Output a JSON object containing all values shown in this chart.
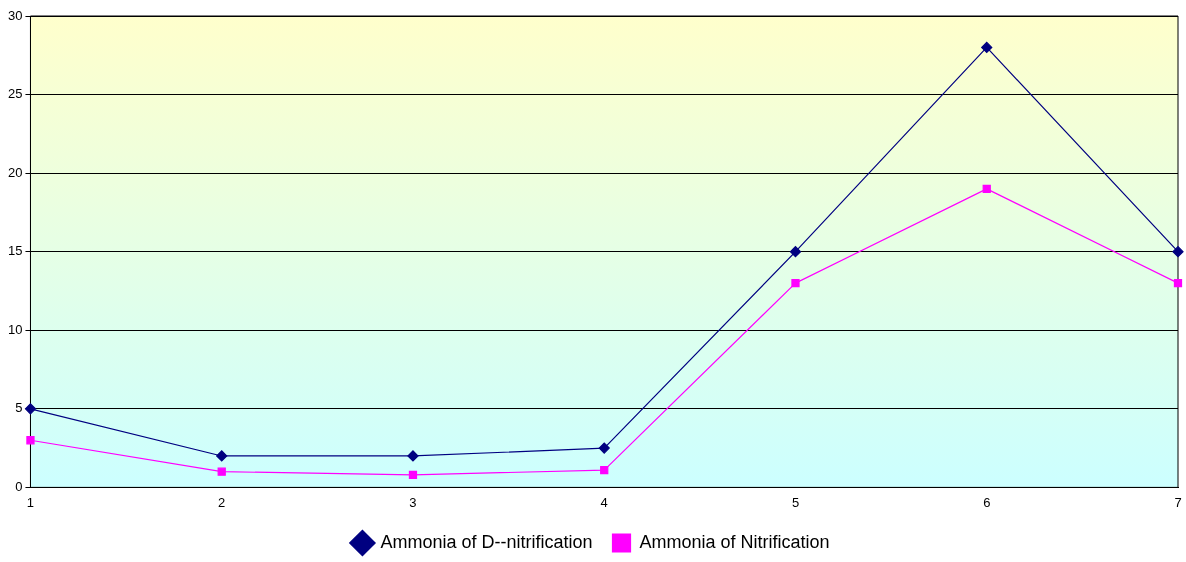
{
  "chart_data": {
    "type": "line",
    "categories": [
      "1",
      "2",
      "3",
      "4",
      "5",
      "6",
      "7"
    ],
    "series": [
      {
        "name": "Ammonia of D--nitrification",
        "color": "#000080",
        "marker": "diamond",
        "values": [
          5,
          2,
          2,
          2.5,
          15,
          28,
          15
        ]
      },
      {
        "name": "Ammonia of Nitrification",
        "color": "#ff00ff",
        "marker": "square",
        "values": [
          3,
          1,
          0.8,
          1.1,
          13,
          19,
          13
        ]
      }
    ],
    "ylim": [
      0,
      30
    ],
    "yticks": [
      0,
      5,
      10,
      15,
      20,
      25,
      30
    ],
    "grid": "y",
    "legend": "bottom",
    "line_style": "solid"
  }
}
